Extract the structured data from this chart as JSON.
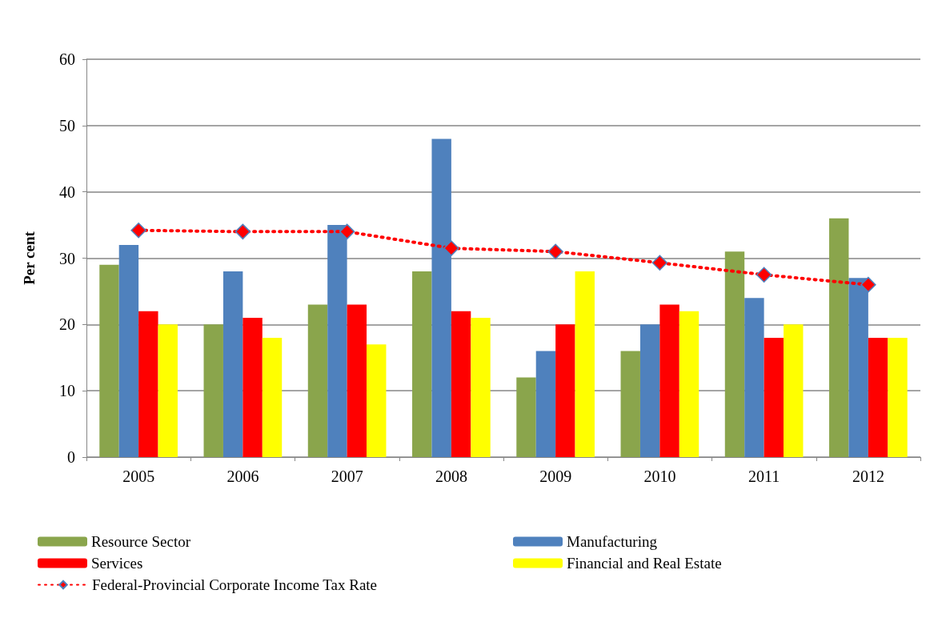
{
  "chart_data": {
    "type": "bar",
    "ylabel": "Per cent",
    "categories": [
      "2005",
      "2006",
      "2007",
      "2008",
      "2009",
      "2010",
      "2011",
      "2012"
    ],
    "series": [
      {
        "name": "Resource Sector",
        "color": "#8aa54c",
        "values": [
          29,
          20,
          23,
          28,
          12,
          16,
          31,
          36
        ]
      },
      {
        "name": "Manufacturing",
        "color": "#4f81bd",
        "values": [
          32,
          28,
          35,
          48,
          16,
          20,
          24,
          27
        ]
      },
      {
        "name": "Services",
        "color": "#ff0000",
        "values": [
          22,
          21,
          23,
          22,
          20,
          23,
          18,
          18
        ]
      },
      {
        "name": "Financial and Real Estate",
        "color": "#ffff00",
        "values": [
          20,
          18,
          17,
          21,
          28,
          22,
          20,
          18
        ]
      },
      {
        "name": "Federal-Provincial Corporate Income Tax Rate",
        "type": "line",
        "color": "#ff0000",
        "marker": "diamond",
        "line_style": "dotted",
        "values": [
          34.2,
          34,
          34,
          31.5,
          31,
          29.3,
          27.5,
          26
        ]
      }
    ],
    "ylim": [
      0,
      60
    ],
    "yticks": [
      0,
      10,
      20,
      30,
      40,
      50,
      60
    ],
    "grid": "y",
    "legend": "bottom"
  }
}
